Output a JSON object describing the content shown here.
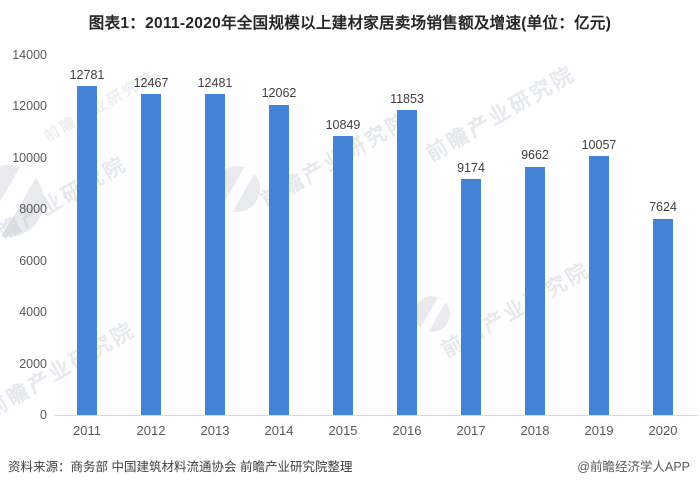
{
  "title": "图表1：2011-2020年全国规模以上建材家居卖场销售额及增速(单位：亿元)",
  "footer": {
    "source": "资料来源：商务部 中国建筑材料流通协会 前瞻产业研究院整理",
    "credit": "@前瞻经济学人APP"
  },
  "watermark": {
    "text": "前瞻产业研究院"
  },
  "colors": {
    "bar": "#4484d6",
    "axis_line": "#d9d9d9",
    "tick_label": "#595959",
    "value_label": "#404040",
    "title": "#262626"
  },
  "chart_data": {
    "type": "bar",
    "title": "图表1：2011-2020年全国规模以上建材家居卖场销售额及增速(单位：亿元)",
    "unit": "亿元",
    "categories": [
      "2011",
      "2012",
      "2013",
      "2014",
      "2015",
      "2016",
      "2017",
      "2018",
      "2019",
      "2020"
    ],
    "values": [
      12781,
      12467,
      12481,
      12062,
      10849,
      11853,
      9174,
      9662,
      10057,
      7624
    ],
    "xlabel": "",
    "ylabel": "",
    "ylim": [
      0,
      14000
    ],
    "yticks": [
      0,
      2000,
      4000,
      6000,
      8000,
      10000,
      12000,
      14000
    ],
    "grid": false,
    "legend": "none",
    "value_labels": true
  }
}
